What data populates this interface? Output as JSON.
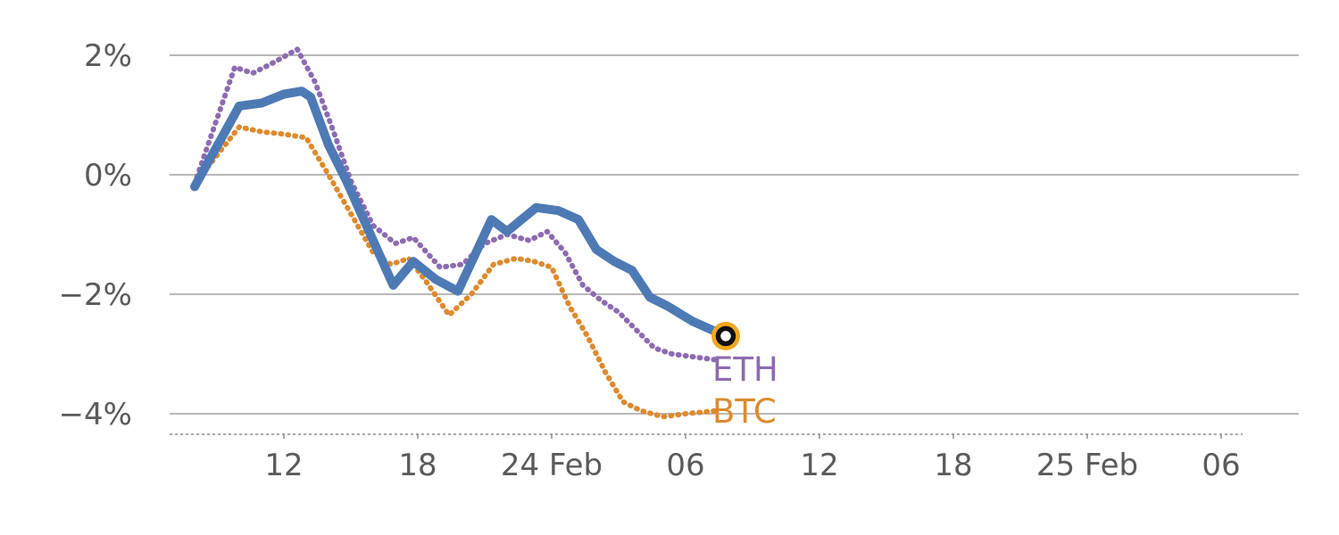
{
  "chart_data": {
    "type": "line",
    "title": "",
    "x_axis": {
      "tick_positions": [
        4,
        10,
        16,
        22,
        28,
        34,
        40,
        46
      ],
      "tick_labels": [
        "12",
        "18",
        "24 Feb",
        "06",
        "12",
        "18",
        "25 Feb",
        "06"
      ],
      "range": [
        -1.2,
        49.5
      ],
      "unit": "hours (time of day)"
    },
    "y_axis": {
      "tick_positions": [
        2,
        0,
        -2,
        -4
      ],
      "tick_labels": [
        "2%",
        "0%",
        "−2%",
        "−4%"
      ],
      "range": [
        -4.35,
        2.5
      ],
      "unit": "%"
    },
    "grid": {
      "horizontal": true,
      "vertical": false
    },
    "series": [
      {
        "name": "btc",
        "label": "BTC",
        "color": "#dd8a2e",
        "line_style": "dotted",
        "line_width": 6,
        "label_anchor": [
          23.2,
          -4.15
        ],
        "points": [
          [
            0,
            -0.15
          ],
          [
            2,
            0.8
          ],
          [
            3,
            0.72
          ],
          [
            4,
            0.68
          ],
          [
            5,
            0.62
          ],
          [
            6,
            0.0
          ],
          [
            7,
            -0.65
          ],
          [
            8,
            -1.3
          ],
          [
            8.8,
            -1.5
          ],
          [
            9.6,
            -1.4
          ],
          [
            10.4,
            -1.8
          ],
          [
            11.4,
            -2.35
          ],
          [
            12.4,
            -2.0
          ],
          [
            13.4,
            -1.5
          ],
          [
            14.4,
            -1.4
          ],
          [
            15.2,
            -1.45
          ],
          [
            16,
            -1.55
          ],
          [
            16.8,
            -2.2
          ],
          [
            17.6,
            -2.7
          ],
          [
            18.4,
            -3.3
          ],
          [
            19.2,
            -3.8
          ],
          [
            20,
            -3.95
          ],
          [
            21,
            -4.05
          ],
          [
            22,
            -4.0
          ],
          [
            23.4,
            -3.95
          ]
        ]
      },
      {
        "name": "eth",
        "label": "ETH",
        "color": "#8c6bb1",
        "line_style": "dotted",
        "line_width": 6,
        "label_anchor": [
          23.2,
          -3.45
        ],
        "points": [
          [
            0,
            -0.15
          ],
          [
            1.8,
            1.8
          ],
          [
            2.6,
            1.7
          ],
          [
            3.4,
            1.85
          ],
          [
            4.6,
            2.1
          ],
          [
            5.4,
            1.55
          ],
          [
            6.2,
            0.75
          ],
          [
            7,
            -0.1
          ],
          [
            8,
            -0.85
          ],
          [
            9,
            -1.15
          ],
          [
            9.8,
            -1.05
          ],
          [
            11,
            -1.55
          ],
          [
            12,
            -1.5
          ],
          [
            13,
            -1.15
          ],
          [
            14,
            -1.0
          ],
          [
            15,
            -1.1
          ],
          [
            15.8,
            -0.95
          ],
          [
            16.6,
            -1.3
          ],
          [
            17.4,
            -1.85
          ],
          [
            18.2,
            -2.1
          ],
          [
            19,
            -2.3
          ],
          [
            19.8,
            -2.6
          ],
          [
            20.6,
            -2.9
          ],
          [
            21.4,
            -3.0
          ],
          [
            22.4,
            -3.05
          ],
          [
            23.4,
            -3.1
          ]
        ]
      },
      {
        "name": "portfolio",
        "label": "",
        "color": "#4d7ab5",
        "line_style": "solid",
        "line_width": 10,
        "label_anchor": null,
        "points": [
          [
            0,
            -0.2
          ],
          [
            2,
            1.15
          ],
          [
            3,
            1.2
          ],
          [
            4,
            1.35
          ],
          [
            4.8,
            1.4
          ],
          [
            5.2,
            1.3
          ],
          [
            6,
            0.5
          ],
          [
            6.8,
            -0.1
          ],
          [
            8,
            -1.1
          ],
          [
            8.9,
            -1.85
          ],
          [
            9.8,
            -1.45
          ],
          [
            10.8,
            -1.75
          ],
          [
            11.8,
            -1.95
          ],
          [
            13.3,
            -0.75
          ],
          [
            14,
            -0.95
          ],
          [
            15.3,
            -0.55
          ],
          [
            16.3,
            -0.6
          ],
          [
            17.2,
            -0.75
          ],
          [
            18,
            -1.25
          ],
          [
            18.8,
            -1.45
          ],
          [
            19.6,
            -1.6
          ],
          [
            20.4,
            -2.05
          ],
          [
            21.2,
            -2.2
          ],
          [
            22.3,
            -2.45
          ],
          [
            23.8,
            -2.7
          ]
        ]
      }
    ],
    "end_marker": {
      "series": "portfolio",
      "x": 23.8,
      "y": -2.7,
      "outer_color": "#f3a71e",
      "ring_color": "#101010",
      "center_color": "#ffffff"
    },
    "legend_position": "inline-right-of-lines"
  },
  "colors": {
    "axis_text": "#5a5a5a",
    "grid": "#a0a0a0",
    "baseline": "#8c8c8c"
  }
}
